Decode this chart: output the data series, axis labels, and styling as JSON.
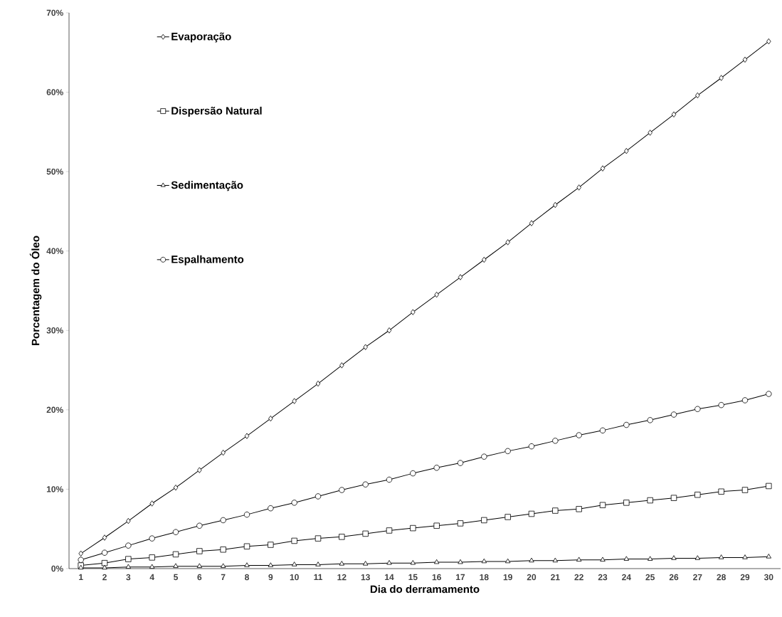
{
  "chart_data": {
    "type": "line",
    "xlabel": "Dia do derramamento",
    "ylabel": "Porcentagem do Óleo",
    "categories": [
      "1",
      "2",
      "3",
      "4",
      "5",
      "6",
      "7",
      "8",
      "9",
      "10",
      "11",
      "12",
      "13",
      "14",
      "15",
      "16",
      "17",
      "18",
      "19",
      "20",
      "21",
      "22",
      "23",
      "24",
      "25",
      "26",
      "27",
      "28",
      "29",
      "30"
    ],
    "ylim": [
      0,
      70
    ],
    "yticks": [
      {
        "value": 0,
        "label": "0%"
      },
      {
        "value": 10,
        "label": "10%"
      },
      {
        "value": 20,
        "label": "20%"
      },
      {
        "value": 30,
        "label": "30%"
      },
      {
        "value": 40,
        "label": "40%"
      },
      {
        "value": 50,
        "label": "50%"
      },
      {
        "value": 60,
        "label": "60%"
      },
      {
        "value": 70,
        "label": "70%"
      }
    ],
    "grid": false,
    "legend": "top left",
    "line_style": "solid",
    "series": [
      {
        "name": "Evaporação",
        "color": "#000000",
        "marker": "diamond",
        "values": [
          1.9,
          3.9,
          6.0,
          8.2,
          10.2,
          12.4,
          14.6,
          16.7,
          18.9,
          21.1,
          23.3,
          25.6,
          27.9,
          30.0,
          32.3,
          34.5,
          36.7,
          38.9,
          41.1,
          43.5,
          45.8,
          48.0,
          50.4,
          52.6,
          54.9,
          57.2,
          59.6,
          61.8,
          64.1,
          66.4
        ]
      },
      {
        "name": "Dispersão Natural",
        "color": "#000000",
        "marker": "square",
        "values": [
          0.4,
          0.7,
          1.2,
          1.4,
          1.8,
          2.2,
          2.4,
          2.8,
          3.0,
          3.5,
          3.8,
          4.0,
          4.4,
          4.8,
          5.1,
          5.4,
          5.7,
          6.1,
          6.5,
          6.9,
          7.3,
          7.5,
          8.0,
          8.3,
          8.6,
          8.9,
          9.3,
          9.7,
          9.9,
          10.4
        ]
      },
      {
        "name": "Sedimentação",
        "color": "#000000",
        "marker": "triangle",
        "values": [
          0.1,
          0.1,
          0.2,
          0.2,
          0.3,
          0.3,
          0.3,
          0.4,
          0.4,
          0.5,
          0.5,
          0.6,
          0.6,
          0.7,
          0.7,
          0.8,
          0.8,
          0.9,
          0.9,
          1.0,
          1.0,
          1.1,
          1.1,
          1.2,
          1.2,
          1.3,
          1.3,
          1.4,
          1.4,
          1.5
        ]
      },
      {
        "name": "Espalhamento",
        "color": "#000000",
        "marker": "circle",
        "values": [
          1.1,
          2.0,
          2.9,
          3.8,
          4.6,
          5.4,
          6.1,
          6.8,
          7.6,
          8.3,
          9.1,
          9.9,
          10.6,
          11.2,
          12.0,
          12.7,
          13.3,
          14.1,
          14.8,
          15.4,
          16.1,
          16.8,
          17.4,
          18.1,
          18.7,
          19.4,
          20.1,
          20.6,
          21.2,
          22.0
        ]
      }
    ]
  }
}
